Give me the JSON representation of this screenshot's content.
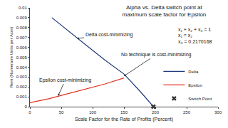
{
  "chart_data": {
    "type": "line",
    "title": "Alpha vs. Delta switch point at\nmaximum scale factor for Epsilon",
    "equations": [
      "x₁ + x₂ + x₃ = 1",
      "x₁ = x₂",
      "x₃ = 0.2170168"
    ],
    "x_label": "Scale Factor for the Rate of Profits (Percent)",
    "y_label": "Rent (Numeraire Units per Acre)",
    "xlim": [
      0,
      300
    ],
    "xticks": [
      0,
      50,
      100,
      150,
      200,
      250,
      300
    ],
    "ylim": [
      0,
      0.01
    ],
    "yticks": [
      0,
      0.001,
      0.002,
      0.003,
      0.004,
      0.005,
      0.006,
      0.007,
      0.008,
      0.009,
      0.01
    ],
    "grid": false,
    "legend": "right",
    "series": [
      {
        "name": "Delta",
        "type": "line",
        "color": "#1f3a7a",
        "marker": "none",
        "line_style": "solid",
        "x": [
          35,
          60,
          90,
          120,
          150,
          175,
          197
        ],
        "values": [
          0.009,
          0.0077,
          0.0062,
          0.0047,
          0.0033,
          0.0016,
          0
        ]
      },
      {
        "name": "Epsilon",
        "type": "line",
        "color": "#e0301e",
        "marker": "none",
        "line_style": "solid",
        "x": [
          0,
          30,
          60,
          90,
          120,
          150
        ],
        "values": [
          0.0004,
          0.0008,
          0.0013,
          0.0018,
          0.0023,
          0.0029
        ]
      },
      {
        "name": "Switch Point",
        "type": "scatter",
        "color": "#333333",
        "marker": "x",
        "line_style": "none",
        "x": [
          197
        ],
        "values": [
          0
        ]
      }
    ],
    "annotations": [
      {
        "text": "Delta cost-minimizing",
        "x": 75,
        "y": 0.0069
      },
      {
        "text": "Epsilon cost-minimizing",
        "x": 45,
        "y": 0.0011
      },
      {
        "text": "No technique is cost-minimizing",
        "x": 150,
        "y": 0.0031
      }
    ]
  }
}
